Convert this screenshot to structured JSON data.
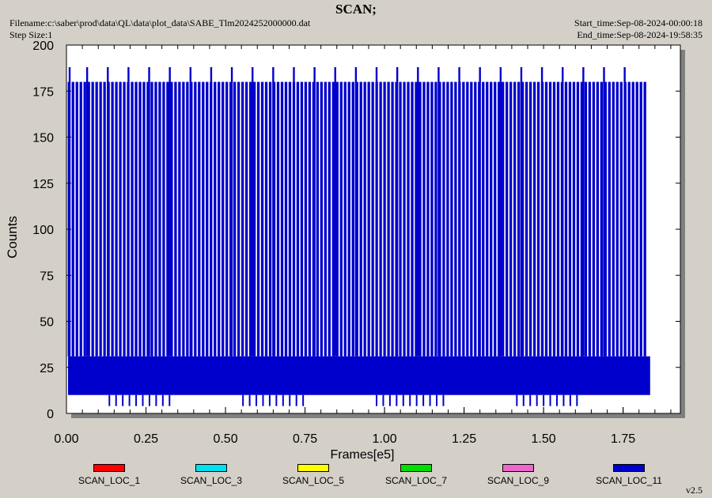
{
  "header": {
    "title": "SCAN;",
    "filename": "Filename:c:\\saber\\prod\\data\\QL\\data\\plot_data\\SABE_Tlm2024252000000.dat",
    "step_size": "Step Size:1",
    "start_time": "Start_time:Sep-08-2024-00:00:18",
    "end_time": "End_time:Sep-08-2024-19:58:35"
  },
  "version": "v2.5",
  "colors": {
    "background": "#d4d0c8",
    "plot_background": "#ffffff",
    "series": "#0000cc"
  },
  "legend": [
    {
      "label": "SCAN_LOC_1",
      "color": "#ff0000"
    },
    {
      "label": "SCAN_LOC_3",
      "color": "#00e0f0"
    },
    {
      "label": "SCAN_LOC_5",
      "color": "#ffff00"
    },
    {
      "label": "SCAN_LOC_7",
      "color": "#00dd00"
    },
    {
      "label": "SCAN_LOC_9",
      "color": "#ee66cc"
    },
    {
      "label": "SCAN_LOC_11",
      "color": "#0000cc"
    }
  ],
  "chart_data": {
    "type": "line",
    "xlabel": "Frames[e5]",
    "ylabel": "Counts",
    "xlim": [
      0,
      1.93
    ],
    "ylim": [
      0,
      200
    ],
    "x_ticks": [
      0,
      0.25,
      0.5,
      0.75,
      1.0,
      1.25,
      1.5,
      1.75
    ],
    "x_tick_labels": [
      "0.00",
      "0.25",
      "0.50",
      "0.75",
      "1.00",
      "1.25",
      "1.50",
      "1.75"
    ],
    "y_ticks": [
      0,
      25,
      50,
      75,
      100,
      125,
      150,
      175,
      200
    ],
    "y_tick_labels": [
      "0",
      "25",
      "50",
      "75",
      "100",
      "125",
      "150",
      "175",
      "200"
    ],
    "grid": false,
    "series": [
      {
        "name": "SCAN_LOC_11",
        "x_range": [
          0.005,
          1.835
        ],
        "baseline_band": [
          10,
          31
        ],
        "spike_peak": 180,
        "tall_spike_peak": 188,
        "spike_spacing": 0.0124,
        "tall_spike_x": [
          0.01,
          0.065,
          0.13,
          0.195,
          0.26,
          0.325,
          0.39,
          0.455,
          0.52,
          0.585,
          0.65,
          0.715,
          0.78,
          0.845,
          0.91,
          0.975,
          1.04,
          1.105,
          1.17,
          1.235,
          1.3,
          1.365,
          1.43,
          1.495,
          1.56,
          1.625,
          1.69,
          1.755
        ],
        "spike_gap_dips": [
          4,
          10
        ]
      }
    ]
  }
}
